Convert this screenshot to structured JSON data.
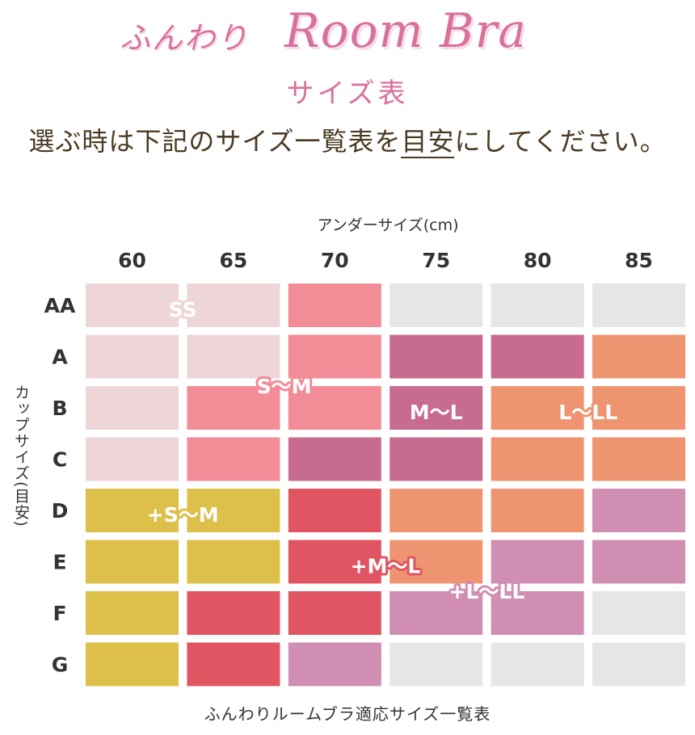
{
  "header": {
    "brand_jp": "ふんわり",
    "brand_en": "Room Bra",
    "subtitle": "サイズ表",
    "lead_before": "選ぶ時は下記のサイズ一覧表を",
    "lead_underlined": "目安",
    "lead_after": "にしてください。"
  },
  "caption": "ふんわりルームブラ適応サイズ一覧表",
  "colors": {
    "SS": "#eed5d8",
    "S~M": "#f28c97",
    "M~L": "#c86b91",
    "L~LL": "#ef9470",
    "+S~M": "#dcc04a",
    "+M~L": "#e05561",
    "+L~LL": "#d08eb2",
    "none": "#e6e6e6"
  },
  "chart_data": {
    "type": "heatmap",
    "title": "ふんわりルームブラ適応サイズ一覧表",
    "xlabel": "アンダーサイズ(cm)",
    "ylabel": "カップサイズ(目安)",
    "x_categories": [
      "60",
      "65",
      "70",
      "75",
      "80",
      "85"
    ],
    "y_categories": [
      "AA",
      "A",
      "B",
      "C",
      "D",
      "E",
      "F",
      "G"
    ],
    "cells": [
      [
        "SS",
        "SS",
        "S~M",
        null,
        null,
        null
      ],
      [
        "SS",
        "SS",
        "S~M",
        "M~L",
        "M~L",
        "L~LL"
      ],
      [
        "SS",
        "S~M",
        "S~M",
        "M~L",
        "L~LL",
        "L~LL"
      ],
      [
        "SS",
        "S~M",
        "M~L",
        "M~L",
        "L~LL",
        "L~LL"
      ],
      [
        "+S~M",
        "+S~M",
        "+M~L",
        "L~LL",
        "L~LL",
        "+L~LL"
      ],
      [
        "+S~M",
        "+S~M",
        "+M~L",
        "L~LL",
        "+L~LL",
        "+L~LL"
      ],
      [
        "+S~M",
        "+M~L",
        "+M~L",
        "+L~LL",
        "+L~LL",
        null
      ],
      [
        "+S~M",
        "+M~L",
        "+L~LL",
        null,
        null,
        null
      ]
    ],
    "region_labels": [
      {
        "key": "SS",
        "text": "SS",
        "row": 0.5,
        "col": 1.0
      },
      {
        "key": "S~M",
        "text": "S〜M",
        "row": 2.0,
        "col": 2.0
      },
      {
        "key": "M~L",
        "text": "M〜L",
        "row": 2.5,
        "col": 3.5
      },
      {
        "key": "L~LL",
        "text": "L〜LL",
        "row": 2.5,
        "col": 5.0
      },
      {
        "key": "+S~M",
        "text": "+S〜M",
        "row": 4.5,
        "col": 1.0
      },
      {
        "key": "+M~L",
        "text": "+M〜L",
        "row": 5.5,
        "col": 3.0
      },
      {
        "key": "+L~LL",
        "text": "+L〜LL",
        "row": 6.0,
        "col": 4.0
      }
    ]
  }
}
